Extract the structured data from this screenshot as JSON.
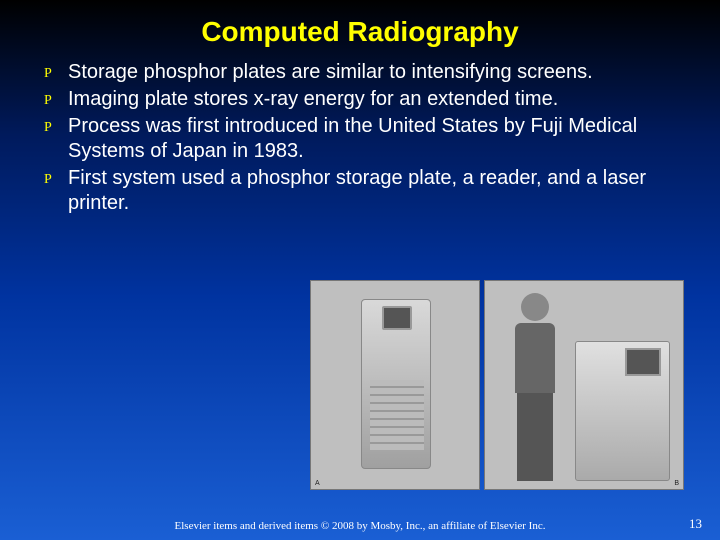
{
  "title": "Computed Radiography",
  "bullet_glyph": "P",
  "bullets": [
    "Storage phosphor plates are similar to intensifying screens.",
    "Imaging plate stores x-ray energy for an extended time.",
    "Process was first introduced in the United States by Fuji Medical Systems of Japan in 1983.",
    "First system used a phosphor storage plate, a reader, and a laser printer."
  ],
  "image1_caption": "A",
  "image2_caption": "B",
  "footer": "Elsevier items and derived items © 2008 by Mosby, Inc., an affiliate of Elsevier Inc.",
  "page_number": "13",
  "colors": {
    "title_color": "#ffff00",
    "bullet_icon_color": "#ffff00",
    "text_color": "#ffffff",
    "bg_top": "#000000",
    "bg_bottom": "#1a5fd4"
  }
}
